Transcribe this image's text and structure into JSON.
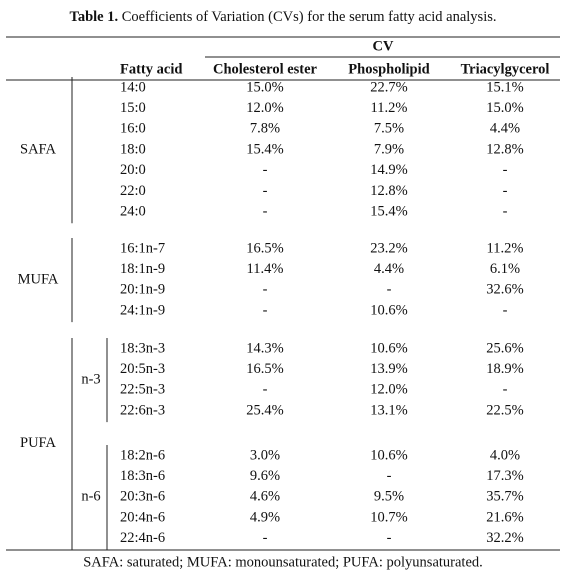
{
  "title_bold": "Table 1.",
  "title": "Coefficients of Variation (CVs) for the serum fatty acid analysis.",
  "header": {
    "cv": "CV",
    "columns": [
      "Fatty acid",
      "Cholesterol ester",
      "Phospholipid",
      "Triacylgycerol"
    ]
  },
  "groups": [
    {
      "label": "SAFA",
      "rows": [
        {
          "fatty_acid": "14:0",
          "values": [
            "15.0%",
            "22.7%",
            "15.1%"
          ]
        },
        {
          "fatty_acid": "15:0",
          "values": [
            "12.0%",
            "11.2%",
            "15.0%"
          ]
        },
        {
          "fatty_acid": "16:0",
          "values": [
            "7.8%",
            "7.5%",
            "4.4%"
          ]
        },
        {
          "fatty_acid": "18:0",
          "values": [
            "15.4%",
            "7.9%",
            "12.8%"
          ]
        },
        {
          "fatty_acid": "20:0",
          "values": [
            "-",
            "14.9%",
            "-"
          ]
        },
        {
          "fatty_acid": "22:0",
          "values": [
            "-",
            "12.8%",
            "-"
          ]
        },
        {
          "fatty_acid": "24:0",
          "values": [
            "-",
            "15.4%",
            "-"
          ]
        }
      ]
    },
    {
      "label": "MUFA",
      "rows": [
        {
          "fatty_acid": "16:1n-7",
          "values": [
            "16.5%",
            "23.2%",
            "11.2%"
          ]
        },
        {
          "fatty_acid": "18:1n-9",
          "values": [
            "11.4%",
            "4.4%",
            "6.1%"
          ]
        },
        {
          "fatty_acid": "20:1n-9",
          "values": [
            "-",
            "-",
            "32.6%"
          ]
        },
        {
          "fatty_acid": "24:1n-9",
          "values": [
            "-",
            "10.6%",
            "-"
          ]
        }
      ]
    },
    {
      "label": "PUFA",
      "subgroups": [
        {
          "label": "n-3",
          "rows": [
            {
              "fatty_acid": "18:3n-3",
              "values": [
                "14.3%",
                "10.6%",
                "25.6%"
              ]
            },
            {
              "fatty_acid": "20:5n-3",
              "values": [
                "16.5%",
                "13.9%",
                "18.9%"
              ]
            },
            {
              "fatty_acid": "22:5n-3",
              "values": [
                "-",
                "12.0%",
                "-"
              ]
            },
            {
              "fatty_acid": "22:6n-3",
              "values": [
                "25.4%",
                "13.1%",
                "22.5%"
              ]
            }
          ]
        },
        {
          "label": "n-6",
          "rows": [
            {
              "fatty_acid": "18:2n-6",
              "values": [
                "3.0%",
                "10.6%",
                "4.0%"
              ]
            },
            {
              "fatty_acid": "18:3n-6",
              "values": [
                "9.6%",
                "-",
                "17.3%"
              ]
            },
            {
              "fatty_acid": "20:3n-6",
              "values": [
                "4.6%",
                "9.5%",
                "35.7%"
              ]
            },
            {
              "fatty_acid": "20:4n-6",
              "values": [
                "4.9%",
                "10.7%",
                "21.6%"
              ]
            },
            {
              "fatty_acid": "22:4n-6",
              "values": [
                "-",
                "-",
                "32.2%"
              ]
            }
          ]
        }
      ]
    }
  ],
  "footnote": "SAFA: saturated; MUFA: monounsaturated; PUFA: polyunsaturated."
}
